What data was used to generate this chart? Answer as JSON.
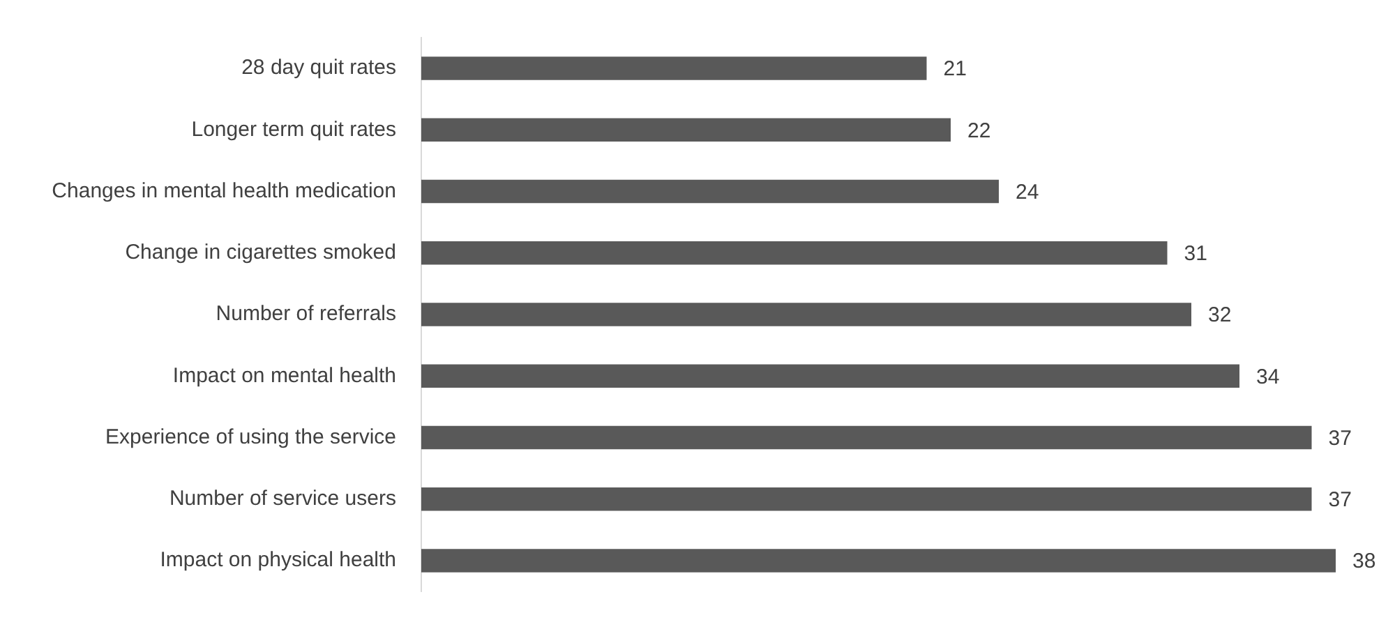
{
  "chart_data": {
    "type": "bar",
    "orientation": "horizontal",
    "categories": [
      "28 day quit rates",
      "Longer term quit rates",
      "Changes in mental health medication",
      "Change in cigarettes smoked",
      "Number of referrals",
      "Impact on mental health",
      "Experience of using the service",
      "Number of service users",
      "Impact on physical health"
    ],
    "values": [
      21,
      22,
      24,
      31,
      32,
      34,
      37,
      37,
      38
    ],
    "color": "#595959",
    "tick_labels": "y",
    "data_labels": true
  }
}
